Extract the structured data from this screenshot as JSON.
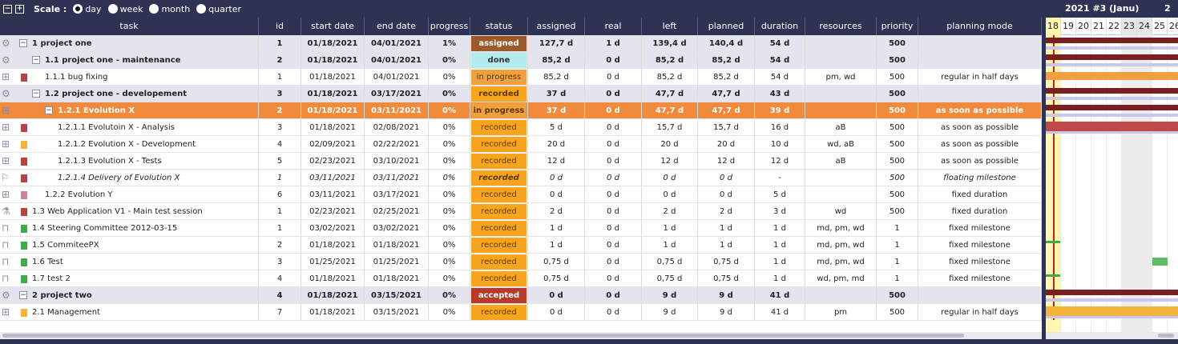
{
  "toolbar": {
    "scale_label": "Scale :",
    "options": [
      "day",
      "week",
      "month",
      "quarter"
    ],
    "selected": "day",
    "collapse_icon": "minus-square-icon",
    "expand_icon": "plus-square-icon"
  },
  "columns": [
    "task",
    "id",
    "start date",
    "end date",
    "progress",
    "status",
    "assigned",
    "real",
    "left",
    "planned",
    "duration",
    "resources",
    "priority",
    "planning mode"
  ],
  "gantt": {
    "week_label": "2021 #3 (Janu)",
    "next_week_label": "2",
    "days": [
      "18",
      "19",
      "20",
      "21",
      "22",
      "23",
      "24",
      "25",
      "26"
    ]
  },
  "status_colors": {
    "assigned": "#9c5a2b",
    "done": "#b3ecef",
    "in progress": "#f0a040",
    "recorded": "#f7a51e",
    "accepted": "#b53a2a"
  },
  "rows": [
    {
      "name": "1 project one",
      "id": "1",
      "start": "01/18/2021",
      "end": "04/01/2021",
      "progress": "1%",
      "status": "assigned",
      "assigned": "127,7 d",
      "real": "1 d",
      "left": "139,4 d",
      "planned": "140,4 d",
      "duration": "54 d",
      "resources": "",
      "priority": "500",
      "mode": "",
      "kind": "grp",
      "level": 0,
      "icon": "gear-icon"
    },
    {
      "name": "1.1 project one - maintenance",
      "id": "2",
      "start": "01/18/2021",
      "end": "04/01/2021",
      "progress": "0%",
      "status": "done",
      "assigned": "85,2 d",
      "real": "0 d",
      "left": "85,2 d",
      "planned": "85,2 d",
      "duration": "54 d",
      "resources": "",
      "priority": "500",
      "mode": "",
      "kind": "grp",
      "level": 1,
      "icon": "gear-icon"
    },
    {
      "name": "1.1.1 bug fixing",
      "id": "1",
      "start": "01/18/2021",
      "end": "04/01/2021",
      "progress": "0%",
      "status": "in progress",
      "assigned": "85,2 d",
      "real": "0 d",
      "left": "85,2 d",
      "planned": "85,2 d",
      "duration": "54 d",
      "resources": "pm, wd",
      "priority": "500",
      "mode": "regular in half days",
      "kind": "item",
      "level": 2,
      "icon": "hierarchy-icon",
      "chip": "#b84141"
    },
    {
      "name": "1.2 project one - developement",
      "id": "3",
      "start": "01/18/2021",
      "end": "03/17/2021",
      "progress": "0%",
      "status": "recorded",
      "assigned": "37 d",
      "real": "0 d",
      "left": "47,7 d",
      "planned": "47,7 d",
      "duration": "43 d",
      "resources": "",
      "priority": "500",
      "mode": "",
      "kind": "grp",
      "level": 1,
      "icon": "gear-icon"
    },
    {
      "name": "1.2.1 Evolution X",
      "id": "2",
      "start": "01/18/2021",
      "end": "03/11/2021",
      "progress": "0%",
      "status": "in progress",
      "assigned": "37 d",
      "real": "0 d",
      "left": "47,7 d",
      "planned": "47,7 d",
      "duration": "39 d",
      "resources": "",
      "priority": "500",
      "mode": "as soon as possible",
      "kind": "sel",
      "level": 2,
      "icon": "hierarchy-icon"
    },
    {
      "name": "1.2.1.1 Evolutoin X - Analysis",
      "id": "3",
      "start": "01/18/2021",
      "end": "02/08/2021",
      "progress": "0%",
      "status": "recorded",
      "assigned": "5 d",
      "real": "0 d",
      "left": "15,7 d",
      "planned": "15,7 d",
      "duration": "16 d",
      "resources": "aB",
      "priority": "500",
      "mode": "as soon as possible",
      "kind": "item",
      "level": 3,
      "icon": "hierarchy-icon",
      "chip": "#b84141"
    },
    {
      "name": "1.2.1.2 Evolution X - Development",
      "id": "4",
      "start": "02/09/2021",
      "end": "02/22/2021",
      "progress": "0%",
      "status": "recorded",
      "assigned": "20 d",
      "real": "0 d",
      "left": "20 d",
      "planned": "20 d",
      "duration": "10 d",
      "resources": "wd, aB",
      "priority": "500",
      "mode": "as soon as possible",
      "kind": "item",
      "level": 3,
      "icon": "hierarchy-icon",
      "chip": "#f2b53a"
    },
    {
      "name": "1.2.1.3 Evolution X - Tests",
      "id": "5",
      "start": "02/23/2021",
      "end": "03/10/2021",
      "progress": "0%",
      "status": "recorded",
      "assigned": "12 d",
      "real": "0 d",
      "left": "12 d",
      "planned": "12 d",
      "duration": "12 d",
      "resources": "aB",
      "priority": "500",
      "mode": "as soon as possible",
      "kind": "item",
      "level": 3,
      "icon": "hierarchy-icon",
      "chip": "#b84141"
    },
    {
      "name": "1.2.1.4 Delivery of Evolution X",
      "id": "1",
      "start": "03/11/2021",
      "end": "03/11/2021",
      "progress": "0%",
      "status": "recorded",
      "assigned": "0 d",
      "real": "0 d",
      "left": "0 d",
      "planned": "0 d",
      "duration": "-",
      "resources": "",
      "priority": "500",
      "mode": "floating milestone",
      "kind": "ital",
      "level": 3,
      "icon": "flag-icon",
      "chip": "#b84141"
    },
    {
      "name": "1.2.2 Evolution Y",
      "id": "6",
      "start": "03/11/2021",
      "end": "03/17/2021",
      "progress": "0%",
      "status": "recorded",
      "assigned": "0 d",
      "real": "0 d",
      "left": "0 d",
      "planned": "0 d",
      "duration": "5 d",
      "resources": "",
      "priority": "500",
      "mode": "fixed duration",
      "kind": "item",
      "level": 2,
      "icon": "hierarchy-icon",
      "chip": "#c98a95"
    },
    {
      "name": "1.3 Web Application V1 - Main test session",
      "id": "1",
      "start": "02/23/2021",
      "end": "02/25/2021",
      "progress": "0%",
      "status": "recorded",
      "assigned": "2 d",
      "real": "0 d",
      "left": "2 d",
      "planned": "2 d",
      "duration": "3 d",
      "resources": "wd",
      "priority": "500",
      "mode": "fixed duration",
      "kind": "item",
      "level": 1,
      "icon": "flask-icon",
      "chip": "#b84141"
    },
    {
      "name": "1.4 Steering Committee 2012-03-15",
      "id": "1",
      "start": "03/02/2021",
      "end": "03/02/2021",
      "progress": "0%",
      "status": "recorded",
      "assigned": "1 d",
      "real": "0 d",
      "left": "1 d",
      "planned": "1 d",
      "duration": "1 d",
      "resources": "md, pm, wd",
      "priority": "1",
      "mode": "fixed milestone",
      "kind": "item",
      "level": 1,
      "icon": "meeting-icon",
      "chip": "#3cab48"
    },
    {
      "name": "1.5 CommiteePX",
      "id": "2",
      "start": "01/18/2021",
      "end": "01/18/2021",
      "progress": "0%",
      "status": "recorded",
      "assigned": "1 d",
      "real": "0 d",
      "left": "1 d",
      "planned": "1 d",
      "duration": "1 d",
      "resources": "md, pm, wd",
      "priority": "1",
      "mode": "fixed milestone",
      "kind": "item",
      "level": 1,
      "icon": "meeting-icon",
      "chip": "#3cab48"
    },
    {
      "name": "1.6 Test",
      "id": "3",
      "start": "01/25/2021",
      "end": "01/25/2021",
      "progress": "0%",
      "status": "recorded",
      "assigned": "0,75 d",
      "real": "0 d",
      "left": "0,75 d",
      "planned": "0,75 d",
      "duration": "1 d",
      "resources": "md, pm, wd",
      "priority": "1",
      "mode": "fixed milestone",
      "kind": "item",
      "level": 1,
      "icon": "meeting-icon",
      "chip": "#3cab48"
    },
    {
      "name": "1.7 test 2",
      "id": "4",
      "start": "01/18/2021",
      "end": "01/18/2021",
      "progress": "0%",
      "status": "recorded",
      "assigned": "0,75 d",
      "real": "0 d",
      "left": "0,75 d",
      "planned": "0,75 d",
      "duration": "1 d",
      "resources": "wd, pm, md",
      "priority": "1",
      "mode": "fixed milestone",
      "kind": "item",
      "level": 1,
      "icon": "meeting-icon",
      "chip": "#3cab48"
    },
    {
      "name": "2 project two",
      "id": "4",
      "start": "01/18/2021",
      "end": "03/15/2021",
      "progress": "0%",
      "status": "accepted",
      "assigned": "0 d",
      "real": "0 d",
      "left": "9 d",
      "planned": "9 d",
      "duration": "41 d",
      "resources": "",
      "priority": "500",
      "mode": "",
      "kind": "grp",
      "level": 0,
      "icon": "gear-icon"
    },
    {
      "name": "2.1 Management",
      "id": "7",
      "start": "01/18/2021",
      "end": "03/15/2021",
      "progress": "0%",
      "status": "recorded",
      "assigned": "0 d",
      "real": "0 d",
      "left": "9 d",
      "planned": "9 d",
      "duration": "41 d",
      "resources": "pm",
      "priority": "500",
      "mode": "regular in half days",
      "kind": "item",
      "level": 1,
      "icon": "hierarchy-icon",
      "chip": "#f2b53a"
    }
  ]
}
